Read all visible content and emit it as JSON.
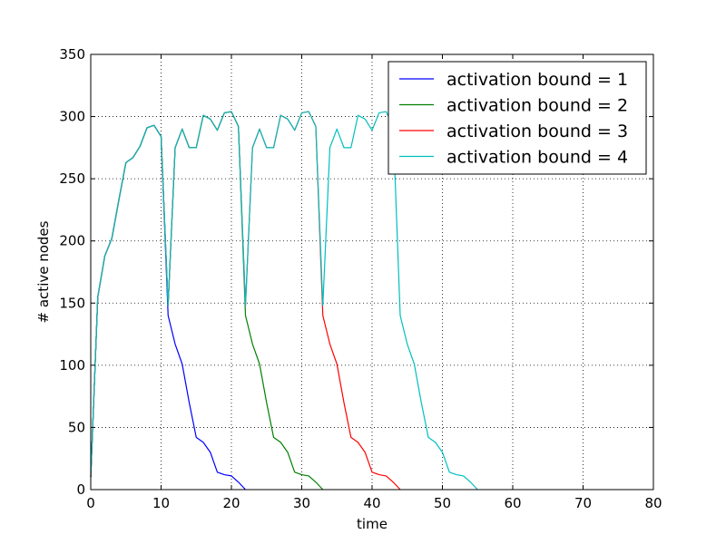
{
  "chart_data": {
    "type": "line",
    "xlabel": "time",
    "ylabel": "# active nodes",
    "xlim": [
      0,
      80
    ],
    "ylim": [
      0,
      350
    ],
    "xticks": [
      0,
      10,
      20,
      30,
      40,
      50,
      60,
      70,
      80
    ],
    "yticks": [
      0,
      50,
      100,
      150,
      200,
      250,
      300,
      350
    ],
    "grid": true,
    "legend_position": "top-right",
    "series": [
      {
        "name": "activation bound = 1",
        "color": "#0000ff",
        "x": [
          0,
          1,
          2,
          3,
          4,
          5,
          6,
          7,
          8,
          9,
          10,
          11,
          12,
          13,
          14,
          15,
          16,
          17,
          18,
          19,
          20,
          21,
          22
        ],
        "y": [
          10,
          155,
          188,
          202,
          233,
          263,
          267,
          276,
          291,
          293,
          284,
          140,
          117,
          101,
          70,
          42,
          38,
          30,
          14,
          12,
          11,
          6,
          0
        ]
      },
      {
        "name": "activation bound = 2",
        "color": "#008000",
        "x": [
          0,
          1,
          2,
          3,
          4,
          5,
          6,
          7,
          8,
          9,
          10,
          11,
          12,
          13,
          14,
          15,
          16,
          17,
          18,
          19,
          20,
          21,
          22,
          23,
          24,
          25,
          26,
          27,
          28,
          29,
          30,
          31,
          32,
          33
        ],
        "y": [
          10,
          155,
          188,
          202,
          233,
          263,
          267,
          276,
          291,
          293,
          284,
          148,
          275,
          290,
          275,
          275,
          301,
          298,
          289,
          303,
          304,
          292,
          140,
          117,
          101,
          70,
          42,
          38,
          30,
          14,
          12,
          11,
          6,
          0
        ]
      },
      {
        "name": "activation bound = 3",
        "color": "#ff0000",
        "x": [
          0,
          1,
          2,
          3,
          4,
          5,
          6,
          7,
          8,
          9,
          10,
          11,
          12,
          13,
          14,
          15,
          16,
          17,
          18,
          19,
          20,
          21,
          22,
          23,
          24,
          25,
          26,
          27,
          28,
          29,
          30,
          31,
          32,
          33,
          34,
          35,
          36,
          37,
          38,
          39,
          40,
          41,
          42,
          43,
          44
        ],
        "y": [
          10,
          155,
          188,
          202,
          233,
          263,
          267,
          276,
          291,
          293,
          284,
          148,
          275,
          290,
          275,
          275,
          301,
          298,
          289,
          303,
          304,
          292,
          148,
          275,
          290,
          275,
          275,
          301,
          298,
          289,
          303,
          304,
          292,
          140,
          117,
          101,
          70,
          42,
          38,
          30,
          14,
          12,
          11,
          6,
          0
        ]
      },
      {
        "name": "activation bound = 4",
        "color": "#00bfbf",
        "x": [
          0,
          1,
          2,
          3,
          4,
          5,
          6,
          7,
          8,
          9,
          10,
          11,
          12,
          13,
          14,
          15,
          16,
          17,
          18,
          19,
          20,
          21,
          22,
          23,
          24,
          25,
          26,
          27,
          28,
          29,
          30,
          31,
          32,
          33,
          34,
          35,
          36,
          37,
          38,
          39,
          40,
          41,
          42,
          43,
          44,
          45,
          46,
          47,
          48,
          49,
          50,
          51,
          52,
          53,
          54,
          55
        ],
        "y": [
          10,
          155,
          188,
          202,
          233,
          263,
          267,
          276,
          291,
          293,
          284,
          148,
          275,
          290,
          275,
          275,
          301,
          298,
          289,
          303,
          304,
          292,
          148,
          275,
          290,
          275,
          275,
          301,
          298,
          289,
          303,
          304,
          292,
          148,
          275,
          290,
          275,
          275,
          301,
          298,
          289,
          303,
          304,
          292,
          140,
          117,
          101,
          70,
          42,
          38,
          30,
          14,
          12,
          11,
          6,
          0
        ]
      }
    ]
  }
}
